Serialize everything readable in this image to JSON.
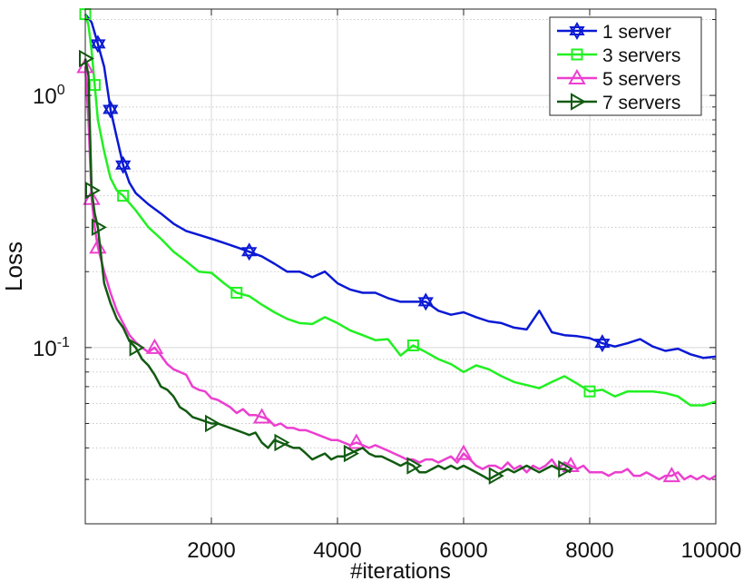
{
  "chart_data": {
    "type": "line",
    "title": "",
    "xlabel": "#iterations",
    "ylabel": "Loss",
    "x_scale": "linear",
    "y_scale": "log",
    "xlim": [
      0,
      10000
    ],
    "ylim": [
      0.02,
      2.2
    ],
    "x_ticks": [
      2000,
      4000,
      6000,
      8000,
      10000
    ],
    "x_tick_labels": [
      "2000",
      "4000",
      "6000",
      "8000",
      "10000"
    ],
    "y_ticks": [
      {
        "base": "10",
        "exp": "-1",
        "value": 0.1
      },
      {
        "base": "10",
        "exp": "0",
        "value": 1
      }
    ],
    "grid": true,
    "minor_grid": true,
    "legend_position": "top-right",
    "series": [
      {
        "name": "1 server",
        "color": "#0a19d4",
        "marker": "hexagram",
        "x": [
          0,
          100,
          200,
          300,
          400,
          500,
          600,
          700,
          800,
          1000,
          1200,
          1400,
          1600,
          1800,
          2000,
          2200,
          2400,
          2600,
          2800,
          3000,
          3200,
          3400,
          3600,
          3800,
          4000,
          4200,
          4400,
          4600,
          4800,
          5000,
          5200,
          5400,
          5600,
          5800,
          6000,
          6200,
          6400,
          6600,
          6800,
          7000,
          7200,
          7400,
          7600,
          7800,
          8000,
          8200,
          8400,
          8600,
          8800,
          9000,
          9200,
          9400,
          9600,
          9800,
          10000
        ],
        "y": [
          2.1,
          1.95,
          1.6,
          1.3,
          0.88,
          0.68,
          0.53,
          0.45,
          0.41,
          0.37,
          0.34,
          0.31,
          0.29,
          0.28,
          0.27,
          0.26,
          0.25,
          0.24,
          0.23,
          0.215,
          0.2,
          0.2,
          0.19,
          0.2,
          0.18,
          0.17,
          0.165,
          0.165,
          0.157,
          0.152,
          0.152,
          0.152,
          0.14,
          0.135,
          0.138,
          0.132,
          0.127,
          0.125,
          0.12,
          0.118,
          0.14,
          0.115,
          0.112,
          0.111,
          0.109,
          0.104,
          0.101,
          0.104,
          0.108,
          0.101,
          0.097,
          0.099,
          0.094,
          0.091,
          0.092
        ],
        "markers_at": [
          200,
          400,
          600,
          2600,
          5400,
          8200
        ]
      },
      {
        "name": "3 servers",
        "color": "#21f021",
        "marker": "square",
        "x": [
          0,
          50,
          100,
          150,
          200,
          300,
          400,
          500,
          600,
          800,
          1000,
          1200,
          1400,
          1600,
          1800,
          2000,
          2200,
          2400,
          2600,
          2800,
          3000,
          3200,
          3400,
          3600,
          3800,
          4000,
          4200,
          4400,
          4600,
          4800,
          5000,
          5200,
          5400,
          5600,
          5800,
          6000,
          6200,
          6400,
          6600,
          6800,
          7000,
          7200,
          7400,
          7600,
          7800,
          8000,
          8200,
          8400,
          8600,
          8800,
          9000,
          9200,
          9400,
          9600,
          9800,
          10000
        ],
        "y": [
          2.1,
          1.9,
          1.5,
          1.1,
          0.8,
          0.6,
          0.47,
          0.42,
          0.4,
          0.35,
          0.3,
          0.27,
          0.24,
          0.22,
          0.2,
          0.198,
          0.18,
          0.165,
          0.16,
          0.148,
          0.138,
          0.13,
          0.125,
          0.124,
          0.132,
          0.125,
          0.117,
          0.112,
          0.107,
          0.108,
          0.093,
          0.102,
          0.096,
          0.09,
          0.086,
          0.08,
          0.085,
          0.082,
          0.077,
          0.073,
          0.071,
          0.069,
          0.073,
          0.077,
          0.072,
          0.067,
          0.068,
          0.064,
          0.067,
          0.067,
          0.067,
          0.066,
          0.064,
          0.059,
          0.059,
          0.061
        ],
        "markers_at": [
          0,
          150,
          600,
          2400,
          5200,
          8000
        ]
      },
      {
        "name": "5 servers",
        "color": "#ec3fcf",
        "marker": "triangle-up",
        "x": [
          0,
          50,
          100,
          150,
          200,
          300,
          400,
          500,
          600,
          700,
          800,
          900,
          1000,
          1100,
          1200,
          1300,
          1400,
          1500,
          1600,
          1700,
          1800,
          1900,
          2000,
          2100,
          2200,
          2300,
          2400,
          2500,
          2600,
          2700,
          2800,
          2900,
          3000,
          3100,
          3200,
          3300,
          3400,
          3500,
          3600,
          3700,
          3800,
          3900,
          4000,
          4100,
          4200,
          4300,
          4400,
          4500,
          4600,
          4700,
          4800,
          4900,
          5000,
          5100,
          5200,
          5300,
          5400,
          5500,
          5600,
          5700,
          5800,
          5900,
          6000,
          6100,
          6200,
          6300,
          6400,
          6500,
          6600,
          6700,
          6800,
          6900,
          7000,
          7100,
          7200,
          7300,
          7400,
          7500,
          7600,
          7700,
          7800,
          7900,
          8000,
          8100,
          8200,
          8300,
          8400,
          8500,
          8600,
          8700,
          8800,
          8900,
          9000,
          9100,
          9200,
          9300,
          9400,
          9500,
          9600,
          9700,
          9800,
          9900,
          10000
        ],
        "y": [
          1.3,
          0.8,
          0.39,
          0.3,
          0.25,
          0.2,
          0.165,
          0.14,
          0.125,
          0.112,
          0.105,
          0.1,
          0.096,
          0.1,
          0.093,
          0.086,
          0.082,
          0.08,
          0.078,
          0.07,
          0.068,
          0.067,
          0.063,
          0.062,
          0.06,
          0.058,
          0.055,
          0.057,
          0.054,
          0.054,
          0.053,
          0.052,
          0.049,
          0.05,
          0.048,
          0.048,
          0.047,
          0.047,
          0.046,
          0.045,
          0.044,
          0.043,
          0.043,
          0.042,
          0.041,
          0.042,
          0.041,
          0.04,
          0.041,
          0.04,
          0.039,
          0.038,
          0.037,
          0.036,
          0.036,
          0.035,
          0.036,
          0.036,
          0.035,
          0.036,
          0.037,
          0.035,
          0.038,
          0.036,
          0.034,
          0.033,
          0.034,
          0.034,
          0.033,
          0.035,
          0.033,
          0.034,
          0.032,
          0.034,
          0.033,
          0.034,
          0.036,
          0.033,
          0.035,
          0.034,
          0.033,
          0.034,
          0.032,
          0.032,
          0.032,
          0.031,
          0.032,
          0.032,
          0.033,
          0.031,
          0.031,
          0.032,
          0.031,
          0.03,
          0.031,
          0.031,
          0.032,
          0.03,
          0.031,
          0.03,
          0.031,
          0.03,
          0.031
        ],
        "markers_at": [
          0,
          100,
          200,
          1100,
          2800,
          4300,
          6000,
          7700,
          9300
        ]
      },
      {
        "name": "7 servers",
        "color": "#115b11",
        "marker": "triangle-right",
        "x": [
          0,
          50,
          100,
          150,
          200,
          300,
          400,
          500,
          600,
          700,
          800,
          900,
          1000,
          1100,
          1200,
          1300,
          1400,
          1500,
          1600,
          1700,
          1800,
          1900,
          2000,
          2100,
          2200,
          2300,
          2400,
          2500,
          2600,
          2700,
          2800,
          2900,
          3000,
          3100,
          3200,
          3300,
          3400,
          3500,
          3600,
          3700,
          3800,
          3900,
          4000,
          4100,
          4200,
          4300,
          4400,
          4500,
          4600,
          4700,
          4800,
          4900,
          5000,
          5100,
          5200,
          5300,
          5400,
          5500,
          5600,
          5700,
          5800,
          5900,
          6000,
          6100,
          6200,
          6300,
          6400,
          6500,
          6600,
          6700,
          6800,
          6900,
          7000,
          7100,
          7200,
          7300,
          7400,
          7500,
          7600,
          7700
        ],
        "y": [
          1.4,
          1.2,
          0.42,
          0.34,
          0.3,
          0.18,
          0.15,
          0.13,
          0.12,
          0.106,
          0.1,
          0.09,
          0.085,
          0.078,
          0.07,
          0.068,
          0.064,
          0.058,
          0.056,
          0.053,
          0.052,
          0.051,
          0.05,
          0.05,
          0.049,
          0.048,
          0.047,
          0.046,
          0.045,
          0.046,
          0.042,
          0.04,
          0.043,
          0.042,
          0.041,
          0.04,
          0.04,
          0.038,
          0.036,
          0.037,
          0.038,
          0.036,
          0.037,
          0.037,
          0.038,
          0.039,
          0.04,
          0.038,
          0.037,
          0.037,
          0.036,
          0.035,
          0.034,
          0.035,
          0.034,
          0.032,
          0.032,
          0.033,
          0.034,
          0.033,
          0.034,
          0.033,
          0.034,
          0.033,
          0.032,
          0.031,
          0.03,
          0.031,
          0.032,
          0.033,
          0.032,
          0.033,
          0.034,
          0.033,
          0.032,
          0.033,
          0.034,
          0.033,
          0.033,
          0.032
        ],
        "markers_at": [
          0,
          100,
          200,
          800,
          2000,
          3100,
          4200,
          5200,
          6500,
          7600
        ]
      }
    ]
  }
}
